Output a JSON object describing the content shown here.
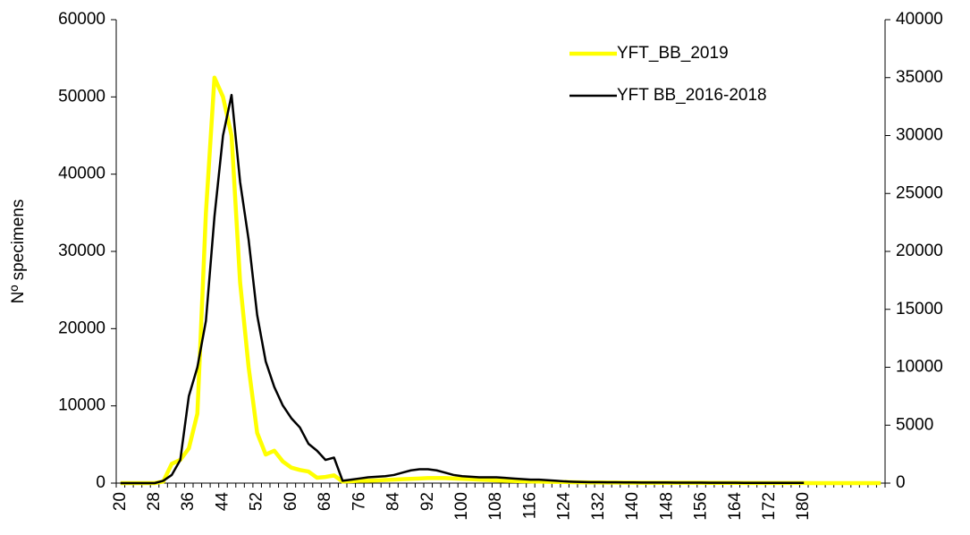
{
  "chart_data": {
    "type": "line",
    "y_label": "Nº specimens",
    "categories": [
      "20",
      null,
      null,
      null,
      "28",
      null,
      null,
      null,
      "36",
      null,
      null,
      null,
      "44",
      null,
      null,
      null,
      "52",
      null,
      null,
      null,
      "60",
      null,
      null,
      null,
      "68",
      null,
      null,
      null,
      "76",
      null,
      null,
      null,
      "84",
      null,
      null,
      null,
      "92",
      null,
      null,
      null,
      "100",
      null,
      null,
      null,
      "108",
      null,
      null,
      null,
      "116",
      null,
      null,
      null,
      "124",
      null,
      null,
      null,
      "132",
      null,
      null,
      null,
      "140",
      null,
      null,
      null,
      "148",
      null,
      null,
      null,
      "156",
      null,
      null,
      null,
      "164",
      null,
      null,
      null,
      "172",
      null,
      null,
      null,
      "180",
      null,
      null,
      null,
      null,
      null,
      null,
      null,
      null,
      null
    ],
    "series": [
      {
        "name": "YFT_BB_2019",
        "color": "#ffff00",
        "axis": "y",
        "values": [
          0,
          0,
          0,
          0,
          0,
          200,
          2500,
          3000,
          4500,
          9000,
          35000,
          52500,
          50000,
          45000,
          26000,
          15000,
          6500,
          3700,
          4200,
          2800,
          2000,
          1700,
          1500,
          700,
          800,
          1000,
          200,
          250,
          300,
          300,
          350,
          400,
          450,
          500,
          550,
          600,
          650,
          650,
          650,
          600,
          550,
          500,
          450,
          400,
          350,
          300,
          280,
          250,
          220,
          200,
          180,
          160,
          140,
          120,
          100,
          80,
          80,
          70,
          70,
          60,
          60,
          50,
          50,
          50,
          50,
          40,
          40,
          40,
          40,
          30,
          30,
          30,
          30,
          20,
          20,
          20,
          20,
          20,
          20,
          20,
          20,
          0,
          0,
          0,
          0,
          0,
          0,
          0,
          0,
          0
        ]
      },
      {
        "name": "YFT BB_2016-2018",
        "color": "#000000",
        "axis": "y2",
        "values": [
          0,
          0,
          0,
          0,
          0,
          200,
          700,
          2000,
          7500,
          10000,
          14000,
          23000,
          30000,
          33500,
          26000,
          21000,
          14500,
          10500,
          8300,
          6700,
          5600,
          4800,
          3400,
          2800,
          2000,
          2200,
          200,
          300,
          400,
          500,
          550,
          600,
          700,
          900,
          1100,
          1200,
          1200,
          1100,
          900,
          700,
          600,
          550,
          500,
          500,
          500,
          450,
          400,
          350,
          300,
          300,
          250,
          200,
          150,
          120,
          100,
          80,
          80,
          70,
          70,
          60,
          60,
          50,
          50,
          50,
          50,
          40,
          40,
          40,
          40,
          30,
          30,
          30,
          30,
          20,
          20,
          20,
          20,
          20,
          20,
          20,
          20,
          null,
          null,
          null,
          null,
          null,
          null,
          null,
          null,
          null
        ]
      }
    ],
    "ylim": [
      0,
      60000
    ],
    "yticks": [
      0,
      10000,
      20000,
      30000,
      40000,
      50000,
      60000
    ],
    "y2lim": [
      0,
      40000
    ],
    "y2ticks": [
      0,
      5000,
      10000,
      15000,
      20000,
      25000,
      30000,
      35000,
      40000
    ],
    "legend": "top-right"
  }
}
